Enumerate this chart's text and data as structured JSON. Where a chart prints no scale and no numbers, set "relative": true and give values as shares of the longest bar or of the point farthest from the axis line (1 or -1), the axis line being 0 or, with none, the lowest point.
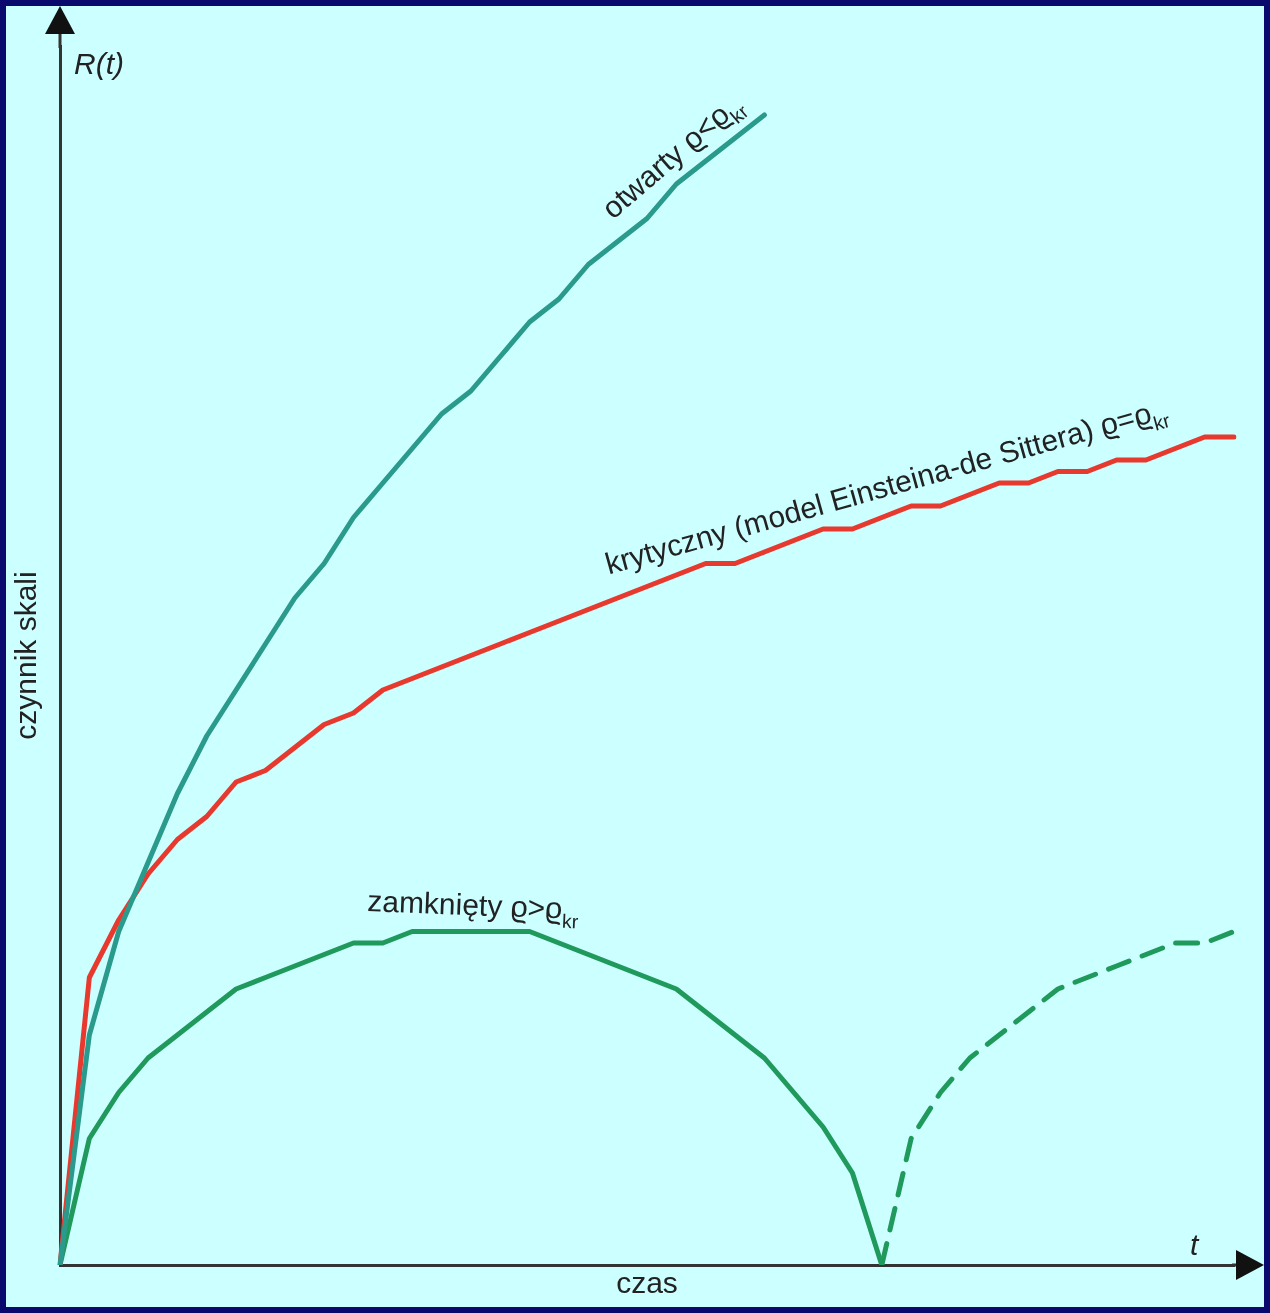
{
  "chart_data": {
    "type": "line",
    "relative": true,
    "xlabel": "czas",
    "ylabel": "czynnik skali",
    "annotations": [
      "R(t)",
      "t"
    ],
    "grid": false,
    "legend": false,
    "marker": "none",
    "categories": [
      null,
      null,
      null,
      null,
      null,
      null,
      null,
      null,
      null,
      null,
      null,
      null,
      null,
      null,
      null,
      null,
      null,
      null,
      null,
      null,
      null,
      null,
      null,
      null,
      null,
      null,
      null,
      null,
      null,
      null,
      null,
      null,
      null,
      null,
      null,
      null,
      null,
      null,
      null,
      null,
      null
    ],
    "series": [
      {
        "name": "otwarty ϱ<ϱ$_{kr}$",
        "color": "#2a9a8c",
        "values": [
          0,
          0.2,
          0.29,
          0.35,
          0.41,
          0.46,
          0.5,
          0.54,
          0.58,
          0.61,
          0.65,
          0.68,
          0.71,
          0.74,
          0.76,
          0.79,
          0.82,
          0.84,
          0.87,
          0.89,
          0.91,
          0.94,
          0.96,
          0.98,
          1,
          null,
          null,
          null,
          null,
          null,
          null,
          null,
          null,
          null,
          null,
          null,
          null,
          null,
          null,
          null,
          null
        ]
      },
      {
        "name": "krytyczny (model Einsteina-de Sittera) ϱ=ϱ$_{kr}$",
        "color": "#e8392e",
        "values": [
          0,
          0.25,
          0.3,
          0.34,
          0.37,
          0.39,
          0.42,
          0.43,
          0.45,
          0.47,
          0.48,
          0.5,
          0.51,
          0.52,
          0.53,
          0.54,
          0.55,
          0.56,
          0.57,
          0.58,
          0.59,
          0.6,
          0.61,
          0.61,
          0.62,
          0.63,
          0.64,
          0.64,
          0.65,
          0.66,
          0.66,
          0.67,
          0.68,
          0.68,
          0.69,
          0.69,
          0.7,
          0.7,
          0.71,
          0.72,
          0.72
        ]
      },
      {
        "name": "zamknięty ϱ>ϱ$_{kr}$",
        "color": "#1f9a5c",
        "values": [
          0,
          0.11,
          0.15,
          0.18,
          0.2,
          0.22,
          0.24,
          0.25,
          0.26,
          0.27,
          0.28,
          0.28,
          0.29,
          0.29,
          0.29,
          0.29,
          0.29,
          0.28,
          0.27,
          0.26,
          0.25,
          0.24,
          0.22,
          0.2,
          0.18,
          0.15,
          0.12,
          0.08,
          0,
          null,
          null,
          null,
          null,
          null,
          null,
          null,
          null,
          null,
          null,
          null,
          null
        ]
      },
      {
        "color": "#1f9a5c",
        "line_style": "dashed",
        "values": [
          null,
          null,
          null,
          null,
          null,
          null,
          null,
          null,
          null,
          null,
          null,
          null,
          null,
          null,
          null,
          null,
          null,
          null,
          null,
          null,
          null,
          null,
          null,
          null,
          null,
          null,
          null,
          null,
          0,
          0.11,
          0.15,
          0.18,
          0.2,
          0.22,
          0.24,
          0.25,
          0.26,
          0.27,
          0.28,
          0.28,
          0.29
        ]
      }
    ]
  }
}
